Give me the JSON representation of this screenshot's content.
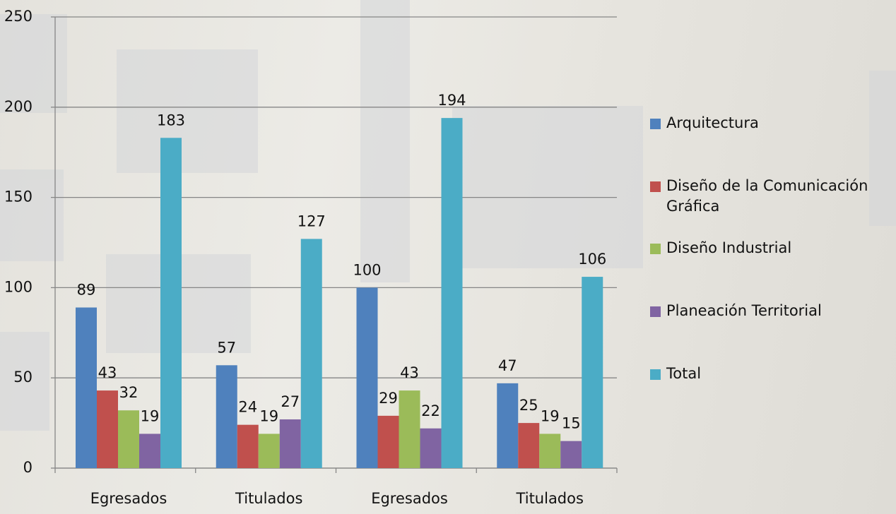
{
  "chart_data": {
    "type": "bar",
    "categories": [
      "Egresados",
      "Titulados",
      "Egresados",
      "Titulados"
    ],
    "series": [
      {
        "name": "Arquitectura",
        "color": "#4f81bd",
        "values": [
          89,
          57,
          100,
          47
        ]
      },
      {
        "name": "Diseño de la Comunicación Gráfica",
        "color": "#c0504d",
        "values": [
          43,
          24,
          29,
          25
        ]
      },
      {
        "name": "Diseño Industrial",
        "color": "#9bbb59",
        "values": [
          32,
          19,
          43,
          19
        ]
      },
      {
        "name": "Planeación Territorial",
        "color": "#8064a2",
        "values": [
          19,
          27,
          22,
          15
        ]
      },
      {
        "name": "Total",
        "color": "#4bacc6",
        "values": [
          183,
          127,
          194,
          106
        ]
      }
    ],
    "ylim": [
      0,
      250
    ],
    "yticks": [
      0,
      50,
      100,
      150,
      200,
      250
    ],
    "grid": true,
    "legend": "right"
  }
}
